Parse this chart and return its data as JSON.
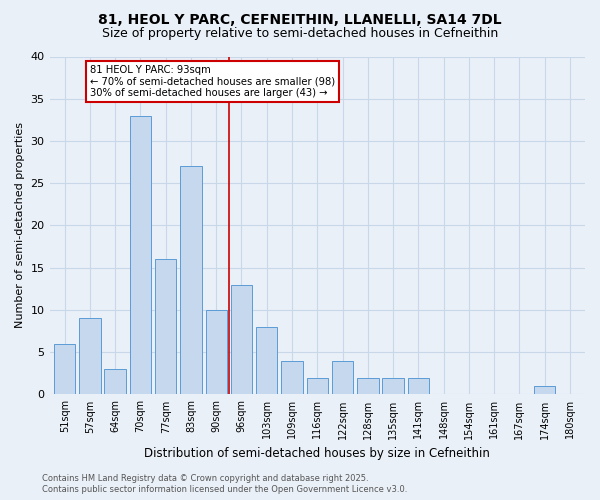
{
  "title_line1": "81, HEOL Y PARC, CEFNEITHIN, LLANELLI, SA14 7DL",
  "title_line2": "Size of property relative to semi-detached houses in Cefneithin",
  "xlabel": "Distribution of semi-detached houses by size in Cefneithin",
  "ylabel": "Number of semi-detached properties",
  "categories": [
    "51sqm",
    "57sqm",
    "64sqm",
    "70sqm",
    "77sqm",
    "83sqm",
    "90sqm",
    "96sqm",
    "103sqm",
    "109sqm",
    "116sqm",
    "122sqm",
    "128sqm",
    "135sqm",
    "141sqm",
    "148sqm",
    "154sqm",
    "161sqm",
    "167sqm",
    "174sqm",
    "180sqm"
  ],
  "values": [
    6,
    9,
    3,
    33,
    16,
    27,
    10,
    13,
    8,
    4,
    2,
    4,
    2,
    2,
    2,
    0,
    0,
    0,
    0,
    1,
    0
  ],
  "bar_color": "#c5d8ed",
  "bar_edge_color": "#5b9bd5",
  "grid_color": "#c8d8e8",
  "background_color": "#eaf0f8",
  "vline_color": "#cc0000",
  "annotation_text": "81 HEOL Y PARC: 93sqm\n← 70% of semi-detached houses are smaller (98)\n30% of semi-detached houses are larger (43) →",
  "annotation_border_color": "#cc0000",
  "footer_text": "Contains HM Land Registry data © Crown copyright and database right 2025.\nContains public sector information licensed under the Open Government Licence v3.0.",
  "ylim": [
    0,
    40
  ],
  "yticks": [
    0,
    5,
    10,
    15,
    20,
    25,
    30,
    35,
    40
  ]
}
